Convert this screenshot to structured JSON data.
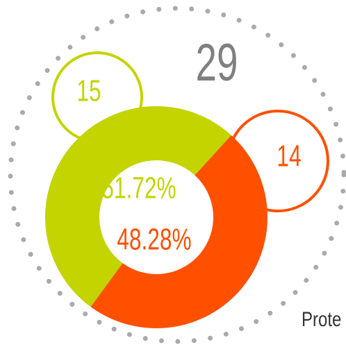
{
  "chart_data": {
    "type": "donut",
    "total": 29,
    "values": [
      15,
      14
    ],
    "colors": [
      "#c3d400",
      "#ff5000"
    ],
    "percentages": [
      51.72,
      48.28
    ],
    "percentage_labels": [
      "51.72%",
      "48.28%"
    ],
    "legend_text": "Prote"
  }
}
